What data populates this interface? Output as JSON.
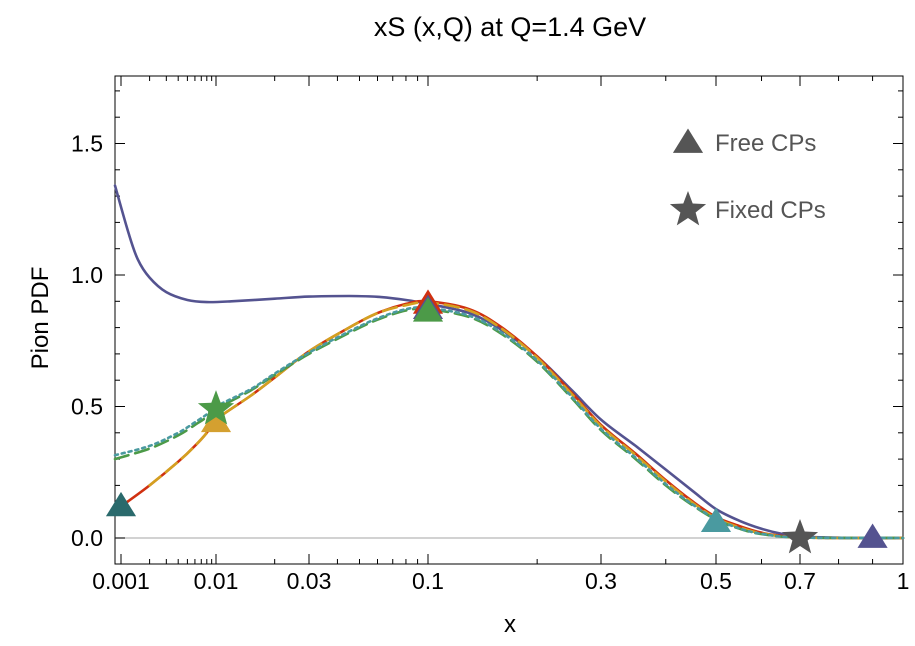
{
  "chart_data": {
    "type": "line",
    "title": "xS (x,Q) at Q=1.4 GeV",
    "xlabel": "x",
    "ylabel": "Pion PDF",
    "xscale": "custom-log",
    "xlim": [
      0.0009,
      1
    ],
    "ylim": [
      -0.1,
      1.75
    ],
    "x_ticks": [
      {
        "value": 0.001,
        "label": "0.001"
      },
      {
        "value": 0.01,
        "label": "0.01"
      },
      {
        "value": 0.03,
        "label": "0.03"
      },
      {
        "value": 0.1,
        "label": "0.1"
      },
      {
        "value": 0.3,
        "label": "0.3"
      },
      {
        "value": 0.5,
        "label": "0.5"
      },
      {
        "value": 0.7,
        "label": "0.7"
      },
      {
        "value": 1,
        "label": "1"
      }
    ],
    "y_ticks": [
      {
        "value": 0.0,
        "label": "0.0"
      },
      {
        "value": 0.5,
        "label": "0.5"
      },
      {
        "value": 1.0,
        "label": "1.0"
      },
      {
        "value": 1.5,
        "label": "1.5"
      }
    ],
    "zero_line": true,
    "legend": {
      "position": "top-right",
      "entries": [
        {
          "label": "Free CPs",
          "marker": "triangle",
          "color": "#555555"
        },
        {
          "label": "Fixed CPs",
          "marker": "star",
          "color": "#555555"
        }
      ]
    },
    "series": [
      {
        "name": "Purple curve",
        "color": "#545390",
        "style": "solid",
        "points": [
          [
            0.0009,
            1.34
          ],
          [
            0.0012,
            1.16
          ],
          [
            0.0015,
            1.06
          ],
          [
            0.002,
            0.99
          ],
          [
            0.003,
            0.935
          ],
          [
            0.005,
            0.905
          ],
          [
            0.008,
            0.897
          ],
          [
            0.012,
            0.9
          ],
          [
            0.02,
            0.91
          ],
          [
            0.03,
            0.918
          ],
          [
            0.045,
            0.92
          ],
          [
            0.06,
            0.917
          ],
          [
            0.08,
            0.905
          ],
          [
            0.1,
            0.89
          ],
          [
            0.13,
            0.855
          ],
          [
            0.16,
            0.79
          ],
          [
            0.2,
            0.69
          ],
          [
            0.25,
            0.56
          ],
          [
            0.3,
            0.45
          ],
          [
            0.35,
            0.35
          ],
          [
            0.4,
            0.26
          ],
          [
            0.45,
            0.18
          ],
          [
            0.5,
            0.11
          ],
          [
            0.55,
            0.065
          ],
          [
            0.6,
            0.035
          ],
          [
            0.65,
            0.016
          ],
          [
            0.7,
            0.006
          ],
          [
            0.8,
            0.001
          ],
          [
            0.9,
            0.0
          ],
          [
            1.0,
            0.0
          ]
        ]
      },
      {
        "name": "Red curve",
        "color": "#d03010",
        "style": "solid",
        "points": [
          [
            0.001,
            0.12
          ],
          [
            0.002,
            0.2
          ],
          [
            0.004,
            0.29
          ],
          [
            0.006,
            0.35
          ],
          [
            0.008,
            0.4
          ],
          [
            0.01,
            0.45
          ],
          [
            0.015,
            0.54
          ],
          [
            0.02,
            0.61
          ],
          [
            0.03,
            0.71
          ],
          [
            0.045,
            0.8
          ],
          [
            0.06,
            0.855
          ],
          [
            0.08,
            0.89
          ],
          [
            0.1,
            0.9
          ],
          [
            0.13,
            0.87
          ],
          [
            0.16,
            0.8
          ],
          [
            0.2,
            0.69
          ],
          [
            0.25,
            0.55
          ],
          [
            0.3,
            0.43
          ],
          [
            0.35,
            0.32
          ],
          [
            0.4,
            0.22
          ],
          [
            0.45,
            0.14
          ],
          [
            0.5,
            0.08
          ],
          [
            0.55,
            0.045
          ],
          [
            0.6,
            0.02
          ],
          [
            0.65,
            0.008
          ],
          [
            0.7,
            0.002
          ],
          [
            0.8,
            0.0
          ],
          [
            1.0,
            0.0
          ]
        ]
      },
      {
        "name": "Orange dashed curve",
        "color": "#d4a020",
        "style": "dashed",
        "points": [
          [
            0.002,
            0.2
          ],
          [
            0.004,
            0.29
          ],
          [
            0.006,
            0.35
          ],
          [
            0.008,
            0.4
          ],
          [
            0.01,
            0.45
          ],
          [
            0.015,
            0.54
          ],
          [
            0.02,
            0.61
          ],
          [
            0.03,
            0.71
          ],
          [
            0.045,
            0.8
          ],
          [
            0.06,
            0.855
          ],
          [
            0.08,
            0.885
          ],
          [
            0.1,
            0.895
          ],
          [
            0.13,
            0.865
          ],
          [
            0.16,
            0.795
          ],
          [
            0.2,
            0.685
          ],
          [
            0.25,
            0.545
          ],
          [
            0.3,
            0.425
          ],
          [
            0.35,
            0.315
          ],
          [
            0.4,
            0.215
          ],
          [
            0.45,
            0.135
          ],
          [
            0.5,
            0.075
          ],
          [
            0.55,
            0.04
          ],
          [
            0.6,
            0.018
          ],
          [
            0.7,
            0.002
          ],
          [
            1.0,
            0.0
          ]
        ]
      },
      {
        "name": "Green dashed curve",
        "color": "#4c9a48",
        "style": "dashed",
        "points": [
          [
            0.0009,
            0.3
          ],
          [
            0.002,
            0.34
          ],
          [
            0.004,
            0.39
          ],
          [
            0.006,
            0.43
          ],
          [
            0.008,
            0.46
          ],
          [
            0.01,
            0.49
          ],
          [
            0.015,
            0.56
          ],
          [
            0.02,
            0.62
          ],
          [
            0.03,
            0.7
          ],
          [
            0.045,
            0.78
          ],
          [
            0.06,
            0.83
          ],
          [
            0.08,
            0.865
          ],
          [
            0.1,
            0.87
          ],
          [
            0.13,
            0.84
          ],
          [
            0.16,
            0.775
          ],
          [
            0.2,
            0.67
          ],
          [
            0.25,
            0.53
          ],
          [
            0.3,
            0.41
          ],
          [
            0.35,
            0.3
          ],
          [
            0.4,
            0.2
          ],
          [
            0.45,
            0.125
          ],
          [
            0.5,
            0.07
          ],
          [
            0.55,
            0.035
          ],
          [
            0.6,
            0.015
          ],
          [
            0.7,
            0.002
          ],
          [
            1.0,
            0.0
          ]
        ]
      },
      {
        "name": "Teal dotted curve",
        "color": "#4a9aa0",
        "style": "dotted",
        "points": [
          [
            0.0009,
            0.315
          ],
          [
            0.002,
            0.35
          ],
          [
            0.004,
            0.4
          ],
          [
            0.006,
            0.44
          ],
          [
            0.008,
            0.47
          ],
          [
            0.01,
            0.5
          ],
          [
            0.015,
            0.565
          ],
          [
            0.02,
            0.625
          ],
          [
            0.03,
            0.705
          ],
          [
            0.045,
            0.785
          ],
          [
            0.06,
            0.835
          ],
          [
            0.08,
            0.87
          ],
          [
            0.1,
            0.875
          ],
          [
            0.13,
            0.845
          ],
          [
            0.16,
            0.78
          ],
          [
            0.2,
            0.675
          ],
          [
            0.25,
            0.535
          ],
          [
            0.3,
            0.415
          ],
          [
            0.35,
            0.305
          ],
          [
            0.4,
            0.205
          ],
          [
            0.45,
            0.128
          ],
          [
            0.5,
            0.072
          ],
          [
            0.55,
            0.036
          ],
          [
            0.6,
            0.016
          ],
          [
            0.7,
            0.002
          ],
          [
            1.0,
            0.0
          ]
        ]
      }
    ],
    "markers": [
      {
        "name": "teal triangle x=0.001",
        "shape": "triangle",
        "x": 0.001,
        "y": 0.12,
        "color": "#2a6a6c"
      },
      {
        "name": "orange triangle x=0.01",
        "shape": "triangle",
        "x": 0.01,
        "y": 0.44,
        "color": "#d4a030"
      },
      {
        "name": "green star x=0.01",
        "shape": "star",
        "x": 0.01,
        "y": 0.49,
        "color": "#4c9a48"
      },
      {
        "name": "red triangle x=0.1",
        "shape": "triangle",
        "x": 0.1,
        "y": 0.89,
        "color": "#d03010"
      },
      {
        "name": "purple triangle x=0.1",
        "shape": "triangle",
        "x": 0.1,
        "y": 0.87,
        "color": "#545390"
      },
      {
        "name": "green triangle x=0.1",
        "shape": "triangle",
        "x": 0.1,
        "y": 0.86,
        "color": "#4c9a48"
      },
      {
        "name": "teal triangle x=0.5",
        "shape": "triangle",
        "x": 0.5,
        "y": 0.06,
        "color": "#4a9aa0"
      },
      {
        "name": "gray star x=0.7",
        "shape": "star",
        "x": 0.7,
        "y": 0.0,
        "color": "#555555"
      },
      {
        "name": "purple triangle x=0.9",
        "shape": "triangle",
        "x": 0.9,
        "y": 0.0,
        "color": "#545390"
      }
    ]
  }
}
